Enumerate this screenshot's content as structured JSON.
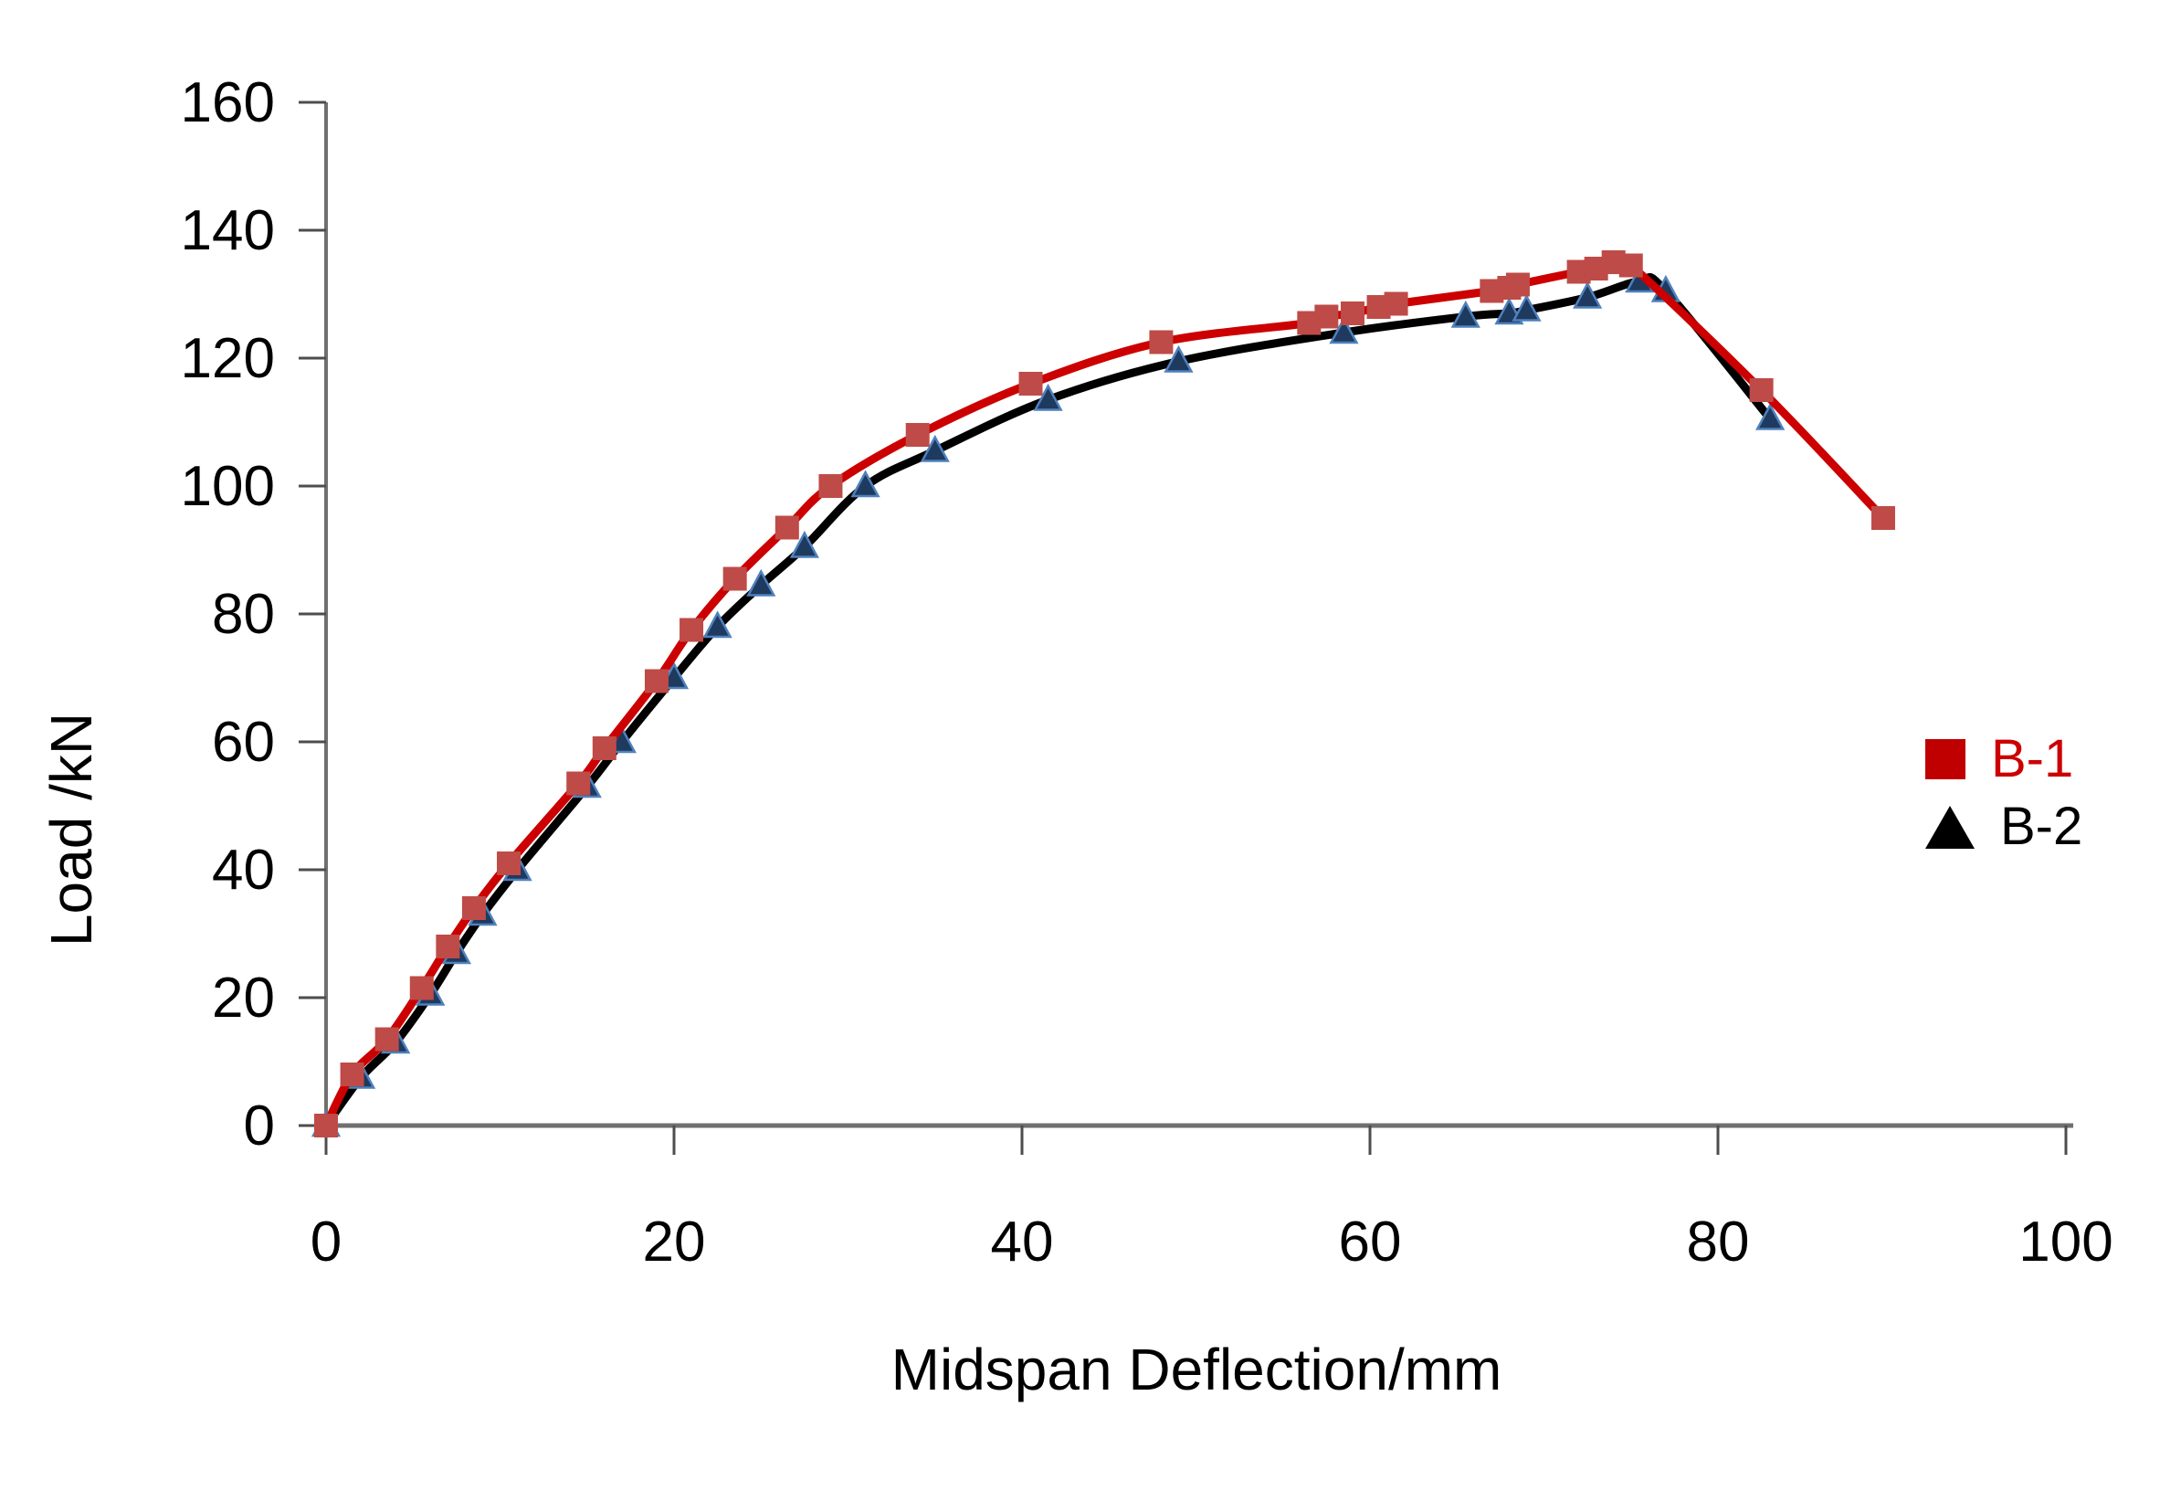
{
  "chart_data": {
    "type": "line",
    "title": "",
    "xlabel": "Midspan Deflection/mm",
    "ylabel": "Load /kN",
    "xlim": [
      0,
      100
    ],
    "ylim": [
      0,
      160
    ],
    "xticks": [
      0,
      20,
      40,
      60,
      80,
      100
    ],
    "yticks": [
      0,
      20,
      40,
      60,
      80,
      100,
      120,
      140,
      160
    ],
    "grid": false,
    "legend_position": "right",
    "axis_color": "#6F6F6F",
    "tick_color": "#4D4D4D",
    "tick_label_color": "#000000",
    "series": [
      {
        "name": "B-1",
        "marker": "square",
        "line_color": "#CC0000",
        "marker_color": "#BE4B47",
        "legend_color": "#C00000",
        "label_color": "#CC0000",
        "points": [
          [
            0,
            0
          ],
          [
            1.5,
            8
          ],
          [
            3.5,
            13.5
          ],
          [
            5.5,
            21.5
          ],
          [
            7,
            28
          ],
          [
            8.5,
            34
          ],
          [
            10.5,
            41
          ],
          [
            14.5,
            53.5
          ],
          [
            16,
            59
          ],
          [
            19,
            69.5
          ],
          [
            21,
            77.5
          ],
          [
            23.5,
            85.5
          ],
          [
            26.5,
            93.5
          ],
          [
            29,
            100
          ],
          [
            34,
            108
          ],
          [
            40.5,
            116
          ],
          [
            48,
            122.5
          ],
          [
            56.5,
            125.5
          ],
          [
            57.5,
            126.5
          ],
          [
            59,
            127
          ],
          [
            60.5,
            128
          ],
          [
            61.5,
            128.5
          ],
          [
            67,
            130.5
          ],
          [
            68,
            131
          ],
          [
            68.5,
            131.5
          ],
          [
            72,
            133.5
          ],
          [
            73,
            134
          ],
          [
            74,
            135
          ],
          [
            75,
            134.5
          ],
          [
            82.5,
            115
          ],
          [
            89.5,
            95
          ]
        ]
      },
      {
        "name": "B-2",
        "marker": "triangle",
        "line_color": "#000000",
        "marker_color": "#1E3A5F",
        "marker_edge_color": "#4F81BD",
        "legend_color": "#000000",
        "label_color": "#000000",
        "points": [
          [
            0,
            0
          ],
          [
            2,
            7.5
          ],
          [
            4,
            13
          ],
          [
            6,
            20.5
          ],
          [
            7.5,
            27
          ],
          [
            9,
            33
          ],
          [
            11,
            40
          ],
          [
            15,
            53
          ],
          [
            17,
            60
          ],
          [
            20,
            70
          ],
          [
            22.5,
            78
          ],
          [
            25,
            84.5
          ],
          [
            27.5,
            90.5
          ],
          [
            31,
            100
          ],
          [
            35,
            105.5
          ],
          [
            41.5,
            113.5
          ],
          [
            49,
            119.5
          ],
          [
            58.5,
            124
          ],
          [
            65.5,
            126.5
          ],
          [
            68,
            127
          ],
          [
            69,
            127.5
          ],
          [
            72.5,
            129.5
          ],
          [
            75.5,
            132
          ],
          [
            77,
            130.5
          ],
          [
            83,
            110.5
          ]
        ]
      }
    ]
  }
}
